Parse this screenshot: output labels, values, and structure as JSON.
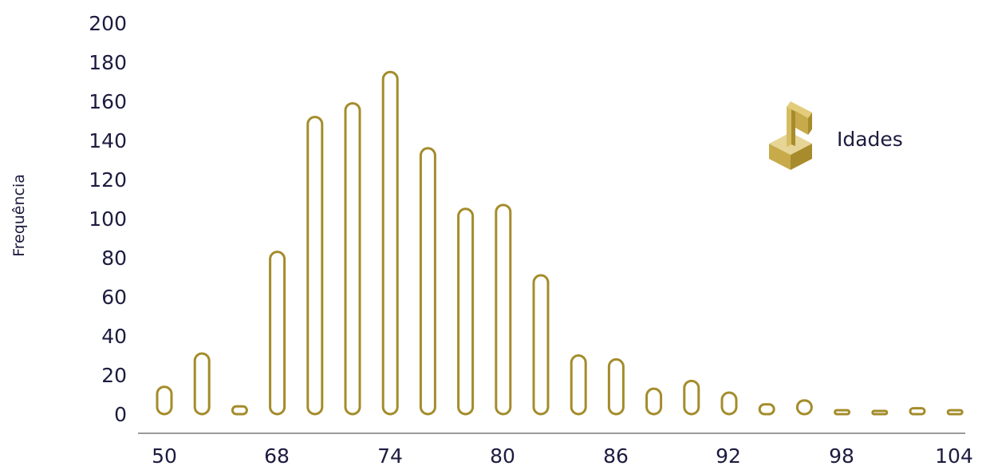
{
  "chart_data": {
    "type": "bar",
    "title": "",
    "xlabel": "",
    "ylabel": "Frequência",
    "ylim": [
      0,
      200
    ],
    "yticks": [
      0,
      20,
      40,
      60,
      80,
      100,
      120,
      140,
      160,
      180,
      200
    ],
    "xtick_labels": [
      "50",
      "68",
      "74",
      "80",
      "86",
      "92",
      "98",
      "104"
    ],
    "series": [
      {
        "name": "Idades",
        "values": [
          14,
          31,
          4,
          83,
          152,
          159,
          175,
          136,
          105,
          107,
          71,
          30,
          28,
          13,
          17,
          11,
          5,
          7,
          2,
          1,
          3,
          2
        ]
      }
    ],
    "grid": false,
    "legend": "right",
    "colors": {
      "bar_stroke": "#a38c2b",
      "text": "#1d1b3f",
      "axis": "#9a9a9a"
    },
    "legend_icon": "music-note-icon"
  }
}
